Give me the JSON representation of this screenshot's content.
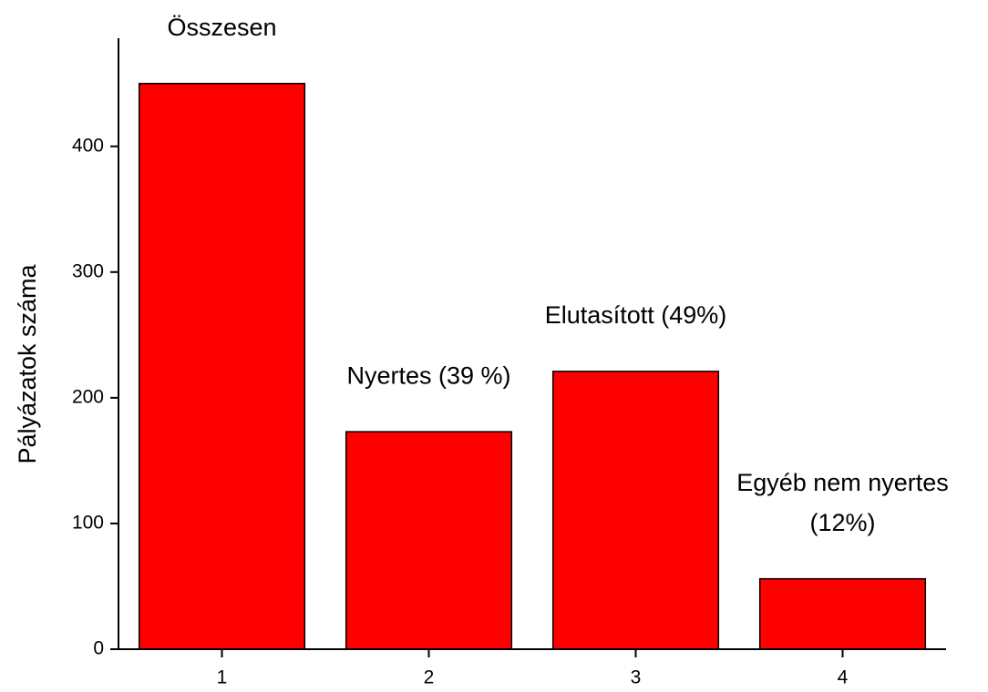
{
  "chart_data": {
    "type": "bar",
    "y_label": "Pályázatok száma",
    "x": [
      1,
      2,
      3,
      4
    ],
    "values": [
      450,
      173,
      221,
      56
    ],
    "color": "#ff0000",
    "annotations": [
      [
        "Összesen"
      ],
      [
        "Nyertes (39 %)"
      ],
      [
        "Elutasított (49%)"
      ],
      [
        "Egyéb nem nyertes",
        "(12%)"
      ]
    ],
    "xlim": [
      0.5,
      4.5
    ],
    "xticks": [
      1,
      2,
      3,
      4
    ],
    "ylim": [
      0,
      486
    ],
    "yticks": [
      0,
      100,
      200,
      300,
      400
    ],
    "grid": false
  }
}
